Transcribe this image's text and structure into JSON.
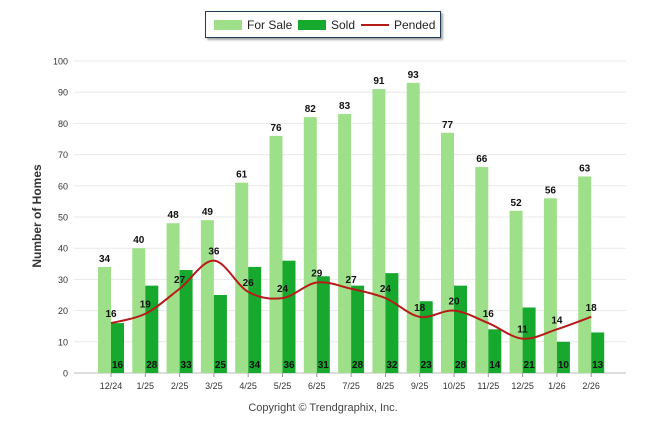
{
  "chart_data": {
    "type": "bar",
    "categories": [
      "12/24",
      "1/25",
      "2/25",
      "3/25",
      "4/25",
      "5/25",
      "6/25",
      "7/25",
      "8/25",
      "9/25",
      "10/25",
      "11/25",
      "12/25",
      "1/26",
      "2/26"
    ],
    "series": [
      {
        "name": "For Sale",
        "type": "bar",
        "color": "#9ee08a",
        "values": [
          34,
          40,
          48,
          49,
          61,
          76,
          82,
          83,
          91,
          93,
          77,
          66,
          52,
          56,
          63
        ]
      },
      {
        "name": "Sold",
        "type": "bar",
        "color": "#17a82e",
        "values": [
          16,
          28,
          33,
          25,
          34,
          36,
          31,
          28,
          32,
          23,
          28,
          14,
          21,
          10,
          13
        ]
      },
      {
        "name": "Pended",
        "type": "line",
        "color": "#b81a1a",
        "values": [
          16,
          19,
          27,
          36,
          26,
          24,
          29,
          27,
          24,
          18,
          20,
          16,
          11,
          14,
          18
        ]
      }
    ],
    "ylabel": "Number of Homes",
    "ylim": [
      0,
      100
    ],
    "yticks": [
      0,
      10,
      20,
      30,
      40,
      50,
      60,
      70,
      80,
      90,
      100
    ],
    "grid": true,
    "legend": "top-center"
  },
  "footer": "Copyright © Trendgraphix, Inc."
}
